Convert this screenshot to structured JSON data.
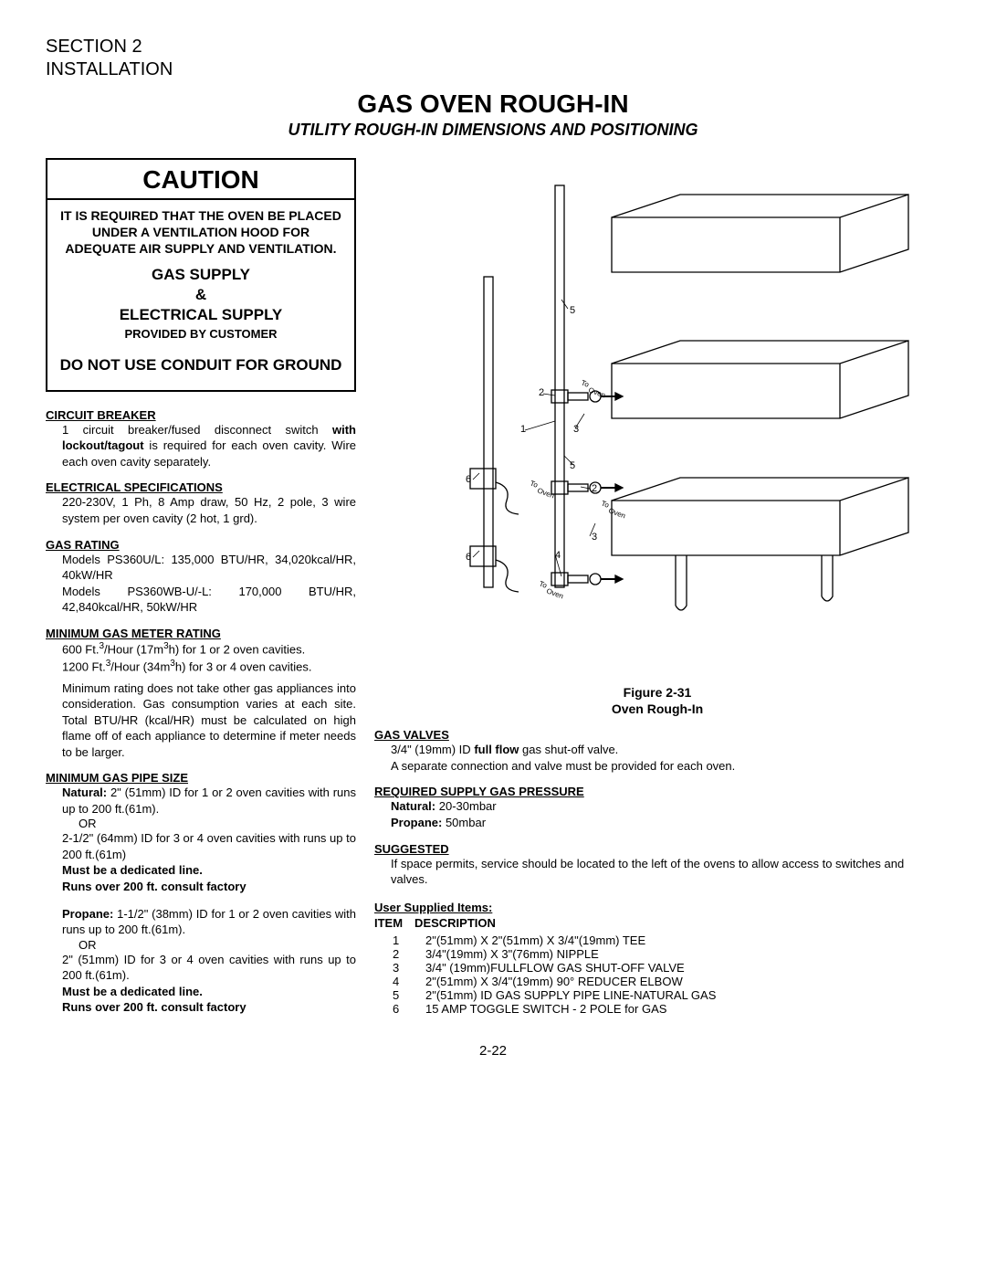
{
  "section": "SECTION 2",
  "install": "INSTALLATION",
  "title": "GAS OVEN ROUGH-IN",
  "subtitle": "UTILITY ROUGH-IN DIMENSIONS AND POSITIONING",
  "caution": {
    "title": "CAUTION",
    "req": "IT IS REQUIRED THAT THE OVEN BE PLACED UNDER A VENTILATION HOOD FOR ADEQUATE AIR SUPPLY AND VENTILATION.",
    "gas1": "GAS SUPPLY",
    "amp": "&",
    "elec": "ELECTRICAL SUPPLY",
    "prov": "PROVIDED BY CUSTOMER",
    "conduit": "DO NOT USE CONDUIT FOR GROUND"
  },
  "specs": {
    "cb_h": "CIRCUIT BREAKER",
    "cb_1a": "1 circuit breaker/fused disconnect switch ",
    "cb_1b": "with lockout/tagout",
    "cb_1c": " is required for each oven cavity. Wire each oven cavity separately.",
    "es_h": "ELECTRICAL SPECIFICATIONS",
    "es_1": "220-230V, 1 Ph, 8 Amp draw, 50 Hz, 2 pole, 3 wire system per oven cavity (2 hot, 1 grd).",
    "gr_h": "GAS RATING",
    "gr_1": "Models PS360U/L: 135,000 BTU/HR, 34,020kcal/HR, 40kW/HR",
    "gr_2": "Models PS360WB-U/-L: 170,000 BTU/HR, 42,840kcal/HR, 50kW/HR",
    "mg_h": "MINIMUM GAS METER RATING",
    "mg_1a": "600 Ft.",
    "mg_1b": "/Hour (17m",
    "mg_1c": "h) for 1 or 2 oven cavities.",
    "mg_2a": "1200 Ft.",
    "mg_2b": "/Hour (34m",
    "mg_2c": "h) for 3 or 4 oven cavities.",
    "mg_note": "Minimum rating does not take other gas appliances into consideration. Gas consumption varies at each site. Total BTU/HR (kcal/HR) must be calculated on high flame off of each appliance to determine if meter needs to be larger.",
    "mp_h": "MINIMUM GAS PIPE SIZE",
    "mp_nat_lbl": "Natural:",
    "mp_nat_1": " 2\" (51mm) ID for 1 or 2 oven cavities with runs up to 200 ft.(61m).",
    "mp_or": "OR",
    "mp_nat_2": "2-1/2\" (64mm) ID for 3 or 4 oven cavities with runs up to 200 ft.(61m)",
    "mp_ded": "Must be a dedicated line.",
    "mp_cons": "Runs over 200 ft. consult factory",
    "mp_pro_lbl": "Propane:",
    "mp_pro_1": " 1-1/2\" (38mm) ID for 1 or 2 oven cavities with runs up to 200 ft.(61m).",
    "mp_pro_2": "2\" (51mm) ID for 3 or 4 oven cavities with runs up to 200 ft.(61m)."
  },
  "figure": {
    "cap1": "Figure 2-31",
    "cap2": "Oven Rough-In",
    "to_oven": "To Oven",
    "callouts": [
      "1",
      "2",
      "3",
      "4",
      "5",
      "6"
    ]
  },
  "right": {
    "gv_h": "GAS VALVES",
    "gv_1a": "3/4\" (19mm) ID ",
    "gv_1b": "full flow",
    "gv_1c": " gas shut-off valve.",
    "gv_2": "A separate connection and valve must be provided for each oven.",
    "rp_h": "REQUIRED SUPPLY GAS PRESSURE",
    "rp_nat_lbl": "Natural:",
    "rp_nat_v": " 20-30mbar",
    "rp_pro_lbl": "Propane:",
    "rp_pro_v": " 50mbar",
    "sg_h": "SUGGESTED",
    "sg_1": "If space permits, service should be located to the left of the ovens to allow access to switches and valves.",
    "usi_h": "User Supplied Items:",
    "usi_head": "ITEM DESCRIPTION",
    "items": [
      {
        "n": "1",
        "d": "2\"(51mm) X 2\"(51mm) X 3/4\"(19mm) TEE"
      },
      {
        "n": "2",
        "d": "3/4\"(19mm) X 3\"(76mm) NIPPLE"
      },
      {
        "n": "3",
        "d": "3/4\" (19mm)FULLFLOW GAS SHUT-OFF VALVE"
      },
      {
        "n": "4",
        "d": "2\"(51mm) X 3/4\"(19mm) 90° REDUCER ELBOW"
      },
      {
        "n": "5",
        "d": "2\"(51mm) ID GAS SUPPLY PIPE LINE-NATURAL GAS"
      },
      {
        "n": "6",
        "d": "15 AMP TOGGLE SWITCH - 2 POLE for GAS"
      }
    ]
  },
  "pageno": "2-22",
  "diagram_style": {
    "stroke": "#000000",
    "stroke_width": 1.3,
    "bg": "#ffffff",
    "font_size_callout": 11,
    "font_size_small": 8
  }
}
